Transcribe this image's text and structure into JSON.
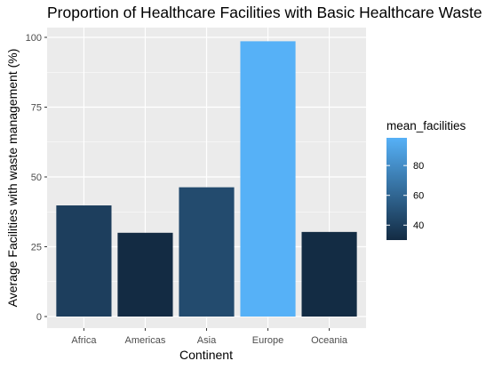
{
  "chart_data": {
    "type": "bar",
    "title": "Proportion of Healthcare Facilities with Basic Healthcare Waste",
    "xlabel": "Continent",
    "ylabel": "Average Facilities with waste management (%)",
    "categories": [
      "Africa",
      "Americas",
      "Asia",
      "Europe",
      "Oceania"
    ],
    "values": [
      39.8,
      30.0,
      46.3,
      98.6,
      30.3
    ],
    "ylim": [
      0,
      100
    ],
    "yticks": [
      0,
      25,
      50,
      75,
      100
    ],
    "grid": true,
    "legend": {
      "title": "mean_facilities",
      "placement": "right",
      "type": "colorbar",
      "range": [
        30.0,
        98.6
      ],
      "ticks": [
        40,
        60,
        80
      ],
      "low_color": "#132B43",
      "high_color": "#56B1F7"
    },
    "panel_color": "#EBEBEB",
    "grid_color": "#FFFFFF"
  }
}
